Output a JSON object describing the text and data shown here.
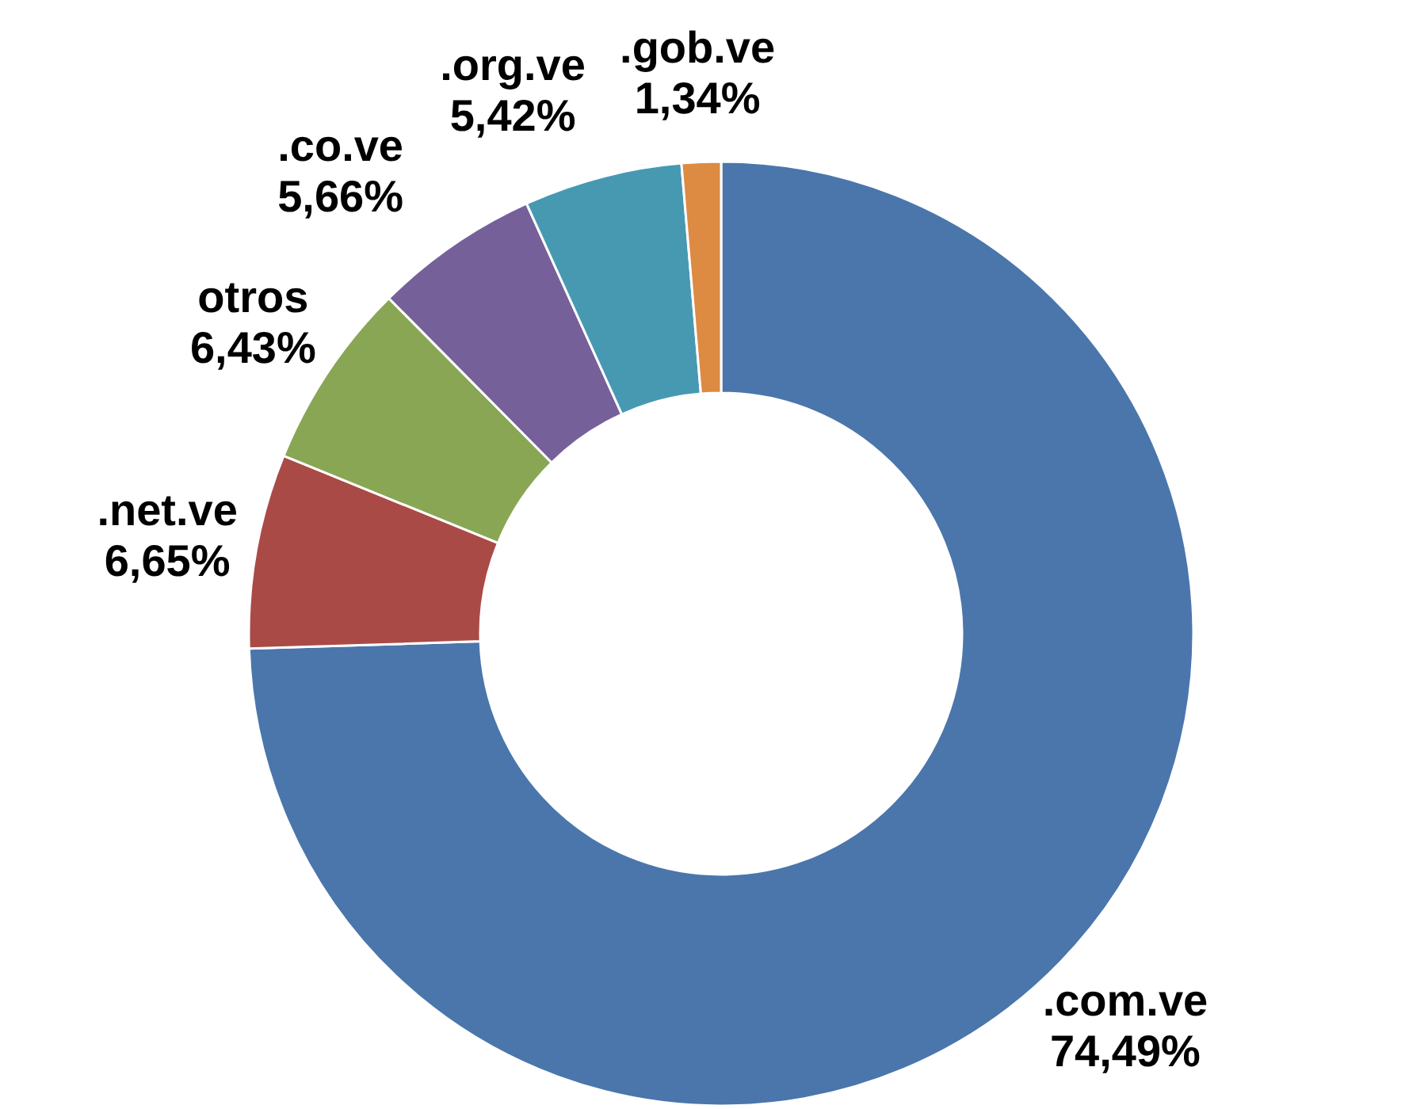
{
  "chart_data": {
    "type": "donut",
    "categories": [
      ".com.ve",
      ".net.ve",
      "otros",
      ".co.ve",
      ".org.ve",
      ".gob.ve"
    ],
    "values": [
      74.49,
      6.65,
      6.43,
      5.66,
      5.42,
      1.34
    ],
    "value_labels": [
      "74,49%",
      "6,65%",
      "6,43%",
      "5,66%",
      "5,42%",
      "1,34%"
    ],
    "colors": [
      "#4a76ab",
      "#aa4a47",
      "#89a654",
      "#76609a",
      "#4799b2",
      "#dd8a43"
    ]
  }
}
